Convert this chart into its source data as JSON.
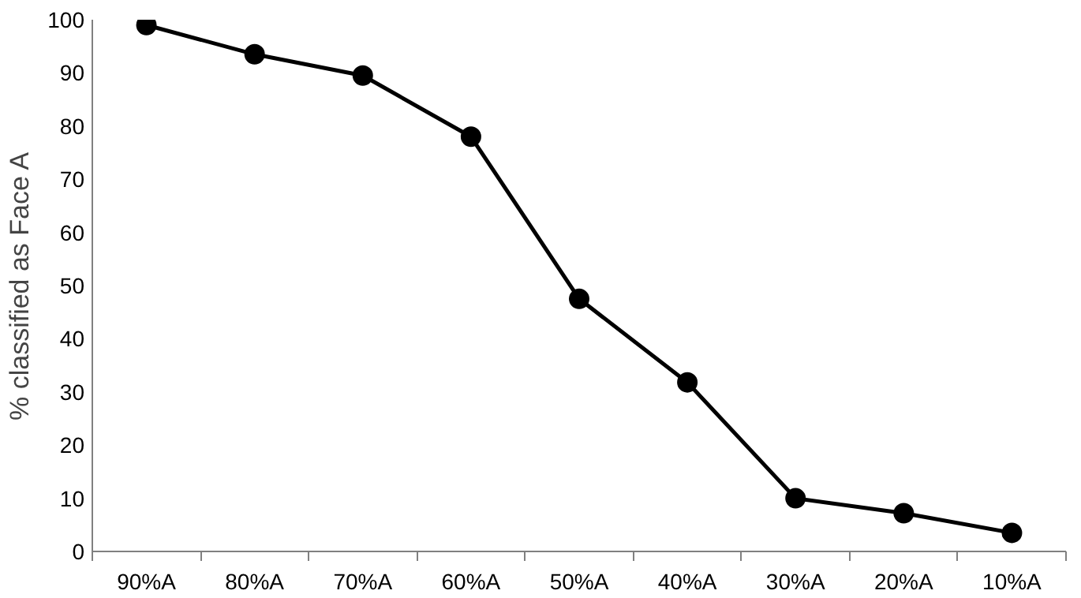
{
  "chart_data": {
    "type": "line",
    "ylabel": "% classified as Face A",
    "categories": [
      "90%A",
      "80%A",
      "70%A",
      "60%A",
      "50%A",
      "40%A",
      "30%A",
      "20%A",
      "10%A"
    ],
    "series": [
      {
        "color": "#000000",
        "values": [
          99,
          93.5,
          89.5,
          78,
          47.5,
          31.8,
          10,
          7.2,
          3.5
        ]
      }
    ],
    "ylim": [
      0,
      100
    ],
    "yticks": [
      0,
      10,
      20,
      30,
      40,
      50,
      60,
      70,
      80,
      90,
      100
    ],
    "grid": false,
    "marker": "circle",
    "line_style": "solid"
  }
}
